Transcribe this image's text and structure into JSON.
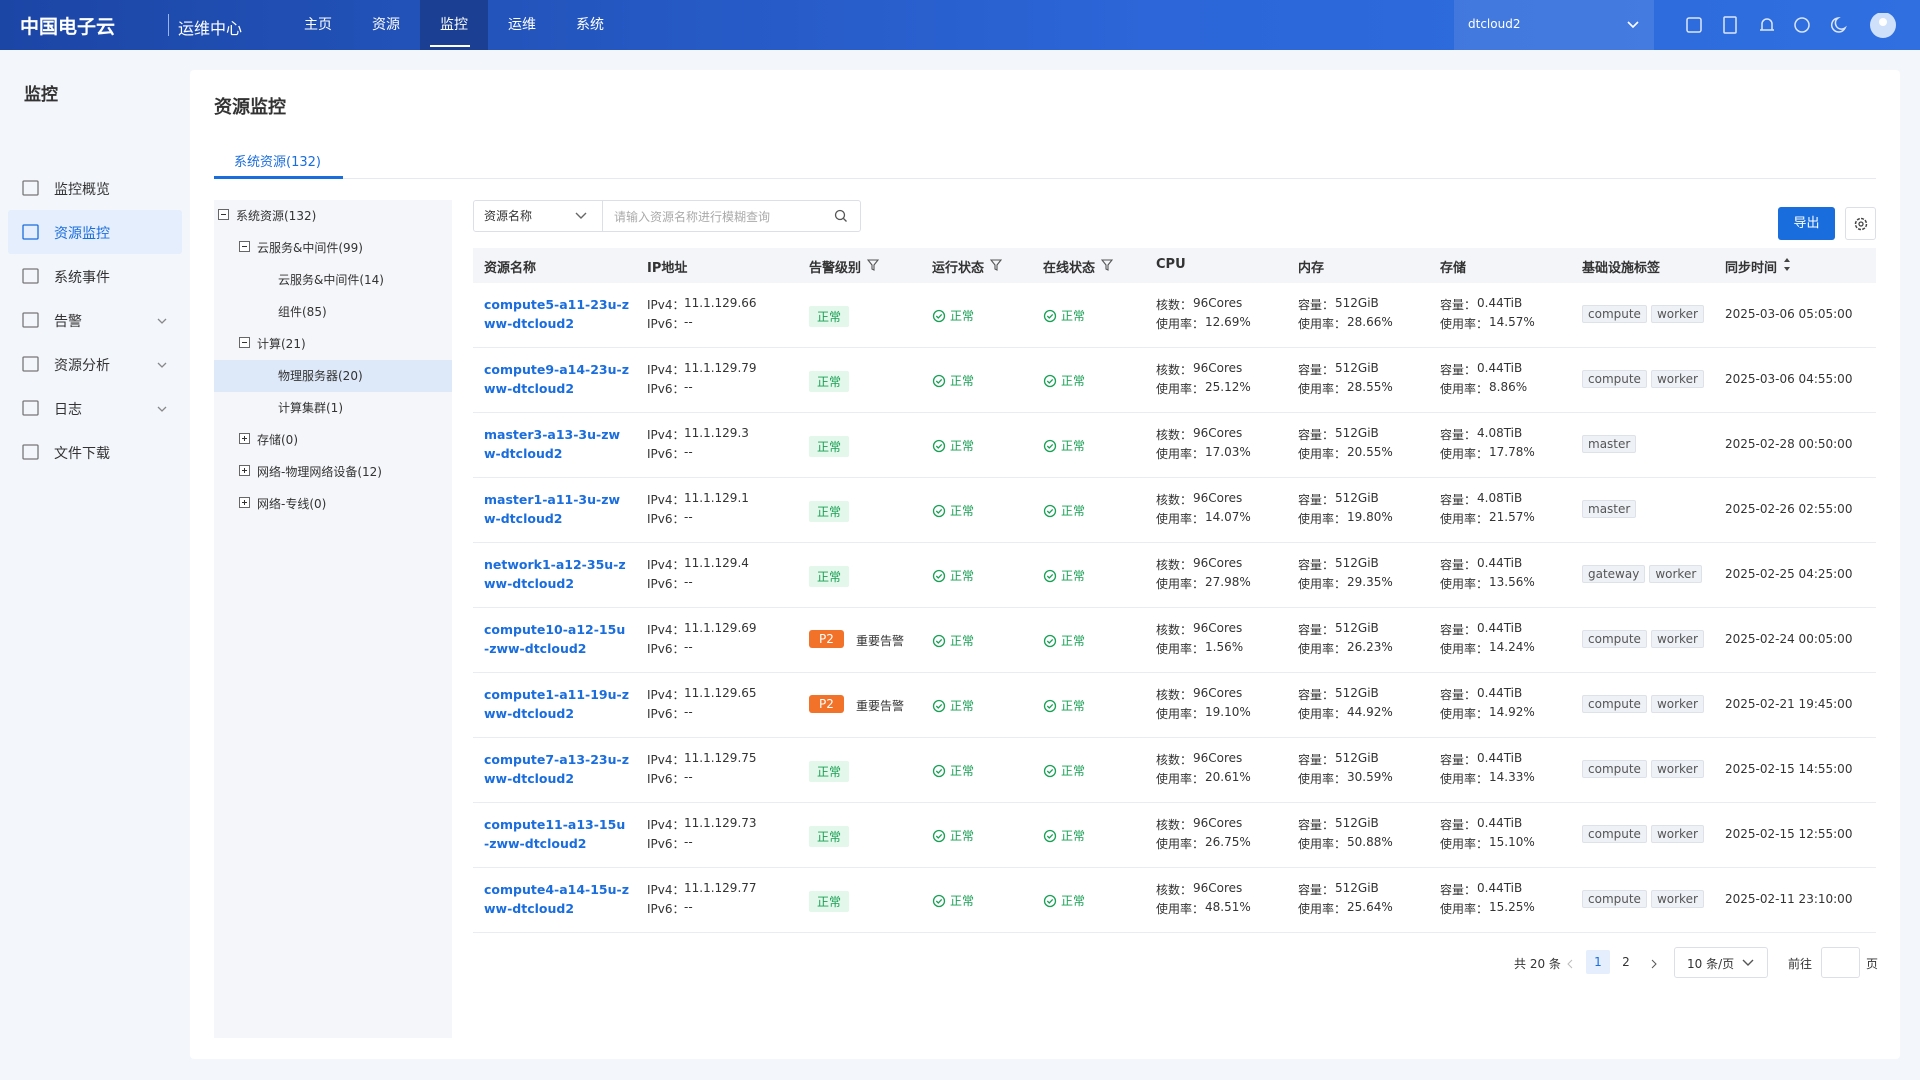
{
  "header": {
    "logo": "中国电子云",
    "app": "运维中心",
    "nav": [
      "主页",
      "资源",
      "监控",
      "运维",
      "系统"
    ],
    "region": "dtcloud2"
  },
  "sidebar": {
    "title": "监控",
    "items": [
      "监控概览",
      "资源监控",
      "系统事件",
      "告警",
      "资源分析",
      "日志",
      "文件下载"
    ]
  },
  "page": {
    "title": "资源监控",
    "tab": "系统资源(132)"
  },
  "tree": {
    "nodes": [
      {
        "label": "系统资源(132)",
        "level": 0
      },
      {
        "label": "云服务&中间件(99)",
        "level": 1
      },
      {
        "label": "云服务&中间件(14)",
        "level": 2
      },
      {
        "label": "组件(85)",
        "level": 2
      },
      {
        "label": "计算(21)",
        "level": 1
      },
      {
        "label": "物理服务器(20)",
        "level": 2
      },
      {
        "label": "计算集群(1)",
        "level": 2
      },
      {
        "label": "存储(0)",
        "level": 1
      },
      {
        "label": "网络-物理网络设备(12)",
        "level": 1
      },
      {
        "label": "网络-专线(0)",
        "level": 1
      }
    ]
  },
  "toolbar": {
    "select": "资源名称",
    "placeholder": "请输入资源名称进行模糊查询",
    "export": "导出"
  },
  "table": {
    "columns": [
      "资源名称",
      "IP地址",
      "告警级别",
      "运行状态",
      "在线状态",
      "CPU",
      "内存",
      "存储",
      "基础设施标签",
      "同步时间"
    ],
    "labels": {
      "ipv4": "IPv4：",
      "ipv6": "IPv6：",
      "cores": "核数：",
      "usage": "使用率：",
      "capacity": "容量："
    },
    "rows": [
      {
        "name": "compute5-a11-23u-zww-dtcloud2",
        "ipv4": "11.1.129.66",
        "ipv6": "--",
        "alert": [
          "正常"
        ],
        "run": "正常",
        "online": "正常",
        "cores": "96Cores",
        "cpu": "12.69%",
        "mem": "512GiB",
        "mem_usage": "28.66%",
        "disk": "0.44TiB",
        "disk_usage": "14.57%",
        "tags": [
          "compute",
          "worker"
        ],
        "time": "2025-03-06 05:05:00"
      },
      {
        "name": "compute9-a14-23u-zww-dtcloud2",
        "ipv4": "11.1.129.79",
        "ipv6": "--",
        "alert": [
          "正常"
        ],
        "run": "正常",
        "online": "正常",
        "cores": "96Cores",
        "cpu": "25.12%",
        "mem": "512GiB",
        "mem_usage": "28.55%",
        "disk": "0.44TiB",
        "disk_usage": "8.86%",
        "tags": [
          "compute",
          "worker"
        ],
        "time": "2025-03-06 04:55:00"
      },
      {
        "name": "master3-a13-3u-zww-dtcloud2",
        "ipv4": "11.1.129.3",
        "ipv6": "--",
        "alert": [
          "正常"
        ],
        "run": "正常",
        "online": "正常",
        "cores": "96Cores",
        "cpu": "17.03%",
        "mem": "512GiB",
        "mem_usage": "20.55%",
        "disk": "4.08TiB",
        "disk_usage": "17.78%",
        "tags": [
          "master"
        ],
        "time": "2025-02-28 00:50:00"
      },
      {
        "name": "master1-a11-3u-zww-dtcloud2",
        "ipv4": "11.1.129.1",
        "ipv6": "--",
        "alert": [
          "正常"
        ],
        "run": "正常",
        "online": "正常",
        "cores": "96Cores",
        "cpu": "14.07%",
        "mem": "512GiB",
        "mem_usage": "19.80%",
        "disk": "4.08TiB",
        "disk_usage": "21.57%",
        "tags": [
          "master"
        ],
        "time": "2025-02-26 02:55:00"
      },
      {
        "name": "network1-a12-35u-zww-dtcloud2",
        "ipv4": "11.1.129.4",
        "ipv6": "--",
        "alert": [
          "正常"
        ],
        "run": "正常",
        "online": "正常",
        "cores": "96Cores",
        "cpu": "27.98%",
        "mem": "512GiB",
        "mem_usage": "29.35%",
        "disk": "0.44TiB",
        "disk_usage": "13.56%",
        "tags": [
          "gateway",
          "worker"
        ],
        "time": "2025-02-25 04:25:00"
      },
      {
        "name": "compute10-a12-15u-zww-dtcloud2",
        "ipv4": "11.1.129.69",
        "ipv6": "--",
        "alert": [
          "P2",
          "重要告警"
        ],
        "run": "正常",
        "online": "正常",
        "cores": "96Cores",
        "cpu": "1.56%",
        "mem": "512GiB",
        "mem_usage": "26.23%",
        "disk": "0.44TiB",
        "disk_usage": "14.24%",
        "tags": [
          "compute",
          "worker"
        ],
        "time": "2025-02-24 00:05:00"
      },
      {
        "name": "compute1-a11-19u-zww-dtcloud2",
        "ipv4": "11.1.129.65",
        "ipv6": "--",
        "alert": [
          "P2",
          "重要告警"
        ],
        "run": "正常",
        "online": "正常",
        "cores": "96Cores",
        "cpu": "19.10%",
        "mem": "512GiB",
        "mem_usage": "44.92%",
        "disk": "0.44TiB",
        "disk_usage": "14.92%",
        "tags": [
          "compute",
          "worker"
        ],
        "time": "2025-02-21 19:45:00"
      },
      {
        "name": "compute7-a13-23u-zww-dtcloud2",
        "ipv4": "11.1.129.75",
        "ipv6": "--",
        "alert": [
          "正常"
        ],
        "run": "正常",
        "online": "正常",
        "cores": "96Cores",
        "cpu": "20.61%",
        "mem": "512GiB",
        "mem_usage": "30.59%",
        "disk": "0.44TiB",
        "disk_usage": "14.33%",
        "tags": [
          "compute",
          "worker"
        ],
        "time": "2025-02-15 14:55:00"
      },
      {
        "name": "compute11-a13-15u-zww-dtcloud2",
        "ipv4": "11.1.129.73",
        "ipv6": "--",
        "alert": [
          "正常"
        ],
        "run": "正常",
        "online": "正常",
        "cores": "96Cores",
        "cpu": "26.75%",
        "mem": "512GiB",
        "mem_usage": "50.88%",
        "disk": "0.44TiB",
        "disk_usage": "15.10%",
        "tags": [
          "compute",
          "worker"
        ],
        "time": "2025-02-15 12:55:00"
      },
      {
        "name": "compute4-a14-15u-zww-dtcloud2",
        "ipv4": "11.1.129.77",
        "ipv6": "--",
        "alert": [
          "正常"
        ],
        "run": "正常",
        "online": "正常",
        "cores": "96Cores",
        "cpu": "48.51%",
        "mem": "512GiB",
        "mem_usage": "25.64%",
        "disk": "0.44TiB",
        "disk_usage": "15.25%",
        "tags": [
          "compute",
          "worker"
        ],
        "time": "2025-02-11 23:10:00"
      }
    ]
  },
  "pagination": {
    "total": "共 20 条",
    "pages": [
      "1",
      "2"
    ],
    "size": "10 条/页",
    "goto": "前往",
    "unit": "页"
  }
}
